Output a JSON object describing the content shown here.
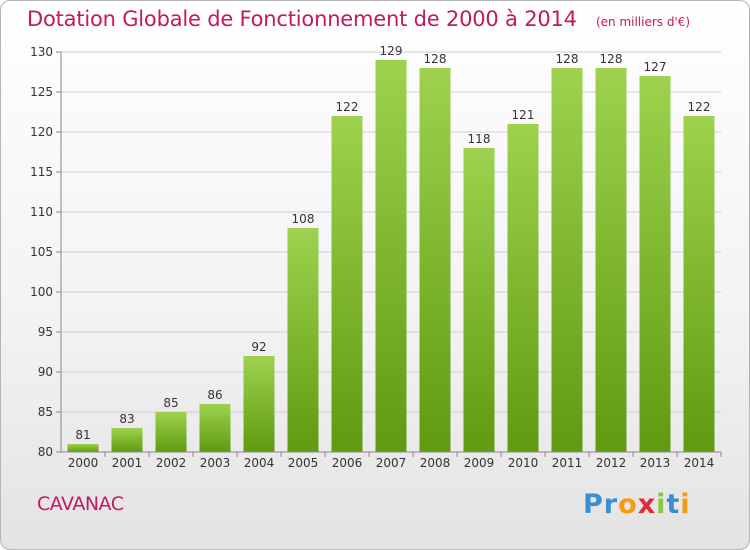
{
  "header": {
    "title": "Dotation Globale de Fonctionnement de 2000 à 2014",
    "subtitle": "(en milliers d'€)"
  },
  "footer": {
    "commune": "CAVANAC",
    "logo_text": "Proxiti",
    "logo_colors": [
      "#3a8fd1",
      "#3a8fd1",
      "#f39c12",
      "#e2283c",
      "#8cc63f",
      "#3a8fd1",
      "#f39c12"
    ]
  },
  "colors": {
    "title": "#c3195d",
    "bar_light": "#9ed24e",
    "bar_dark": "#5f9a12",
    "grid": "#d0d0d0",
    "axis_text": "#333333"
  },
  "chart_data": {
    "type": "bar",
    "title": "Dotation Globale de Fonctionnement de 2000 à 2014",
    "subtitle": "(en milliers d'€)",
    "categories": [
      "2000",
      "2001",
      "2002",
      "2003",
      "2004",
      "2005",
      "2006",
      "2007",
      "2008",
      "2009",
      "2010",
      "2011",
      "2012",
      "2013",
      "2014"
    ],
    "values": [
      81,
      83,
      85,
      86,
      92,
      108,
      122,
      129,
      128,
      118,
      121,
      128,
      128,
      127,
      122
    ],
    "ylim": [
      80,
      130
    ],
    "yticks": [
      80,
      85,
      90,
      95,
      100,
      105,
      110,
      115,
      120,
      125,
      130
    ],
    "xlabel": "",
    "ylabel": "",
    "grid": true,
    "data_labels": true
  }
}
